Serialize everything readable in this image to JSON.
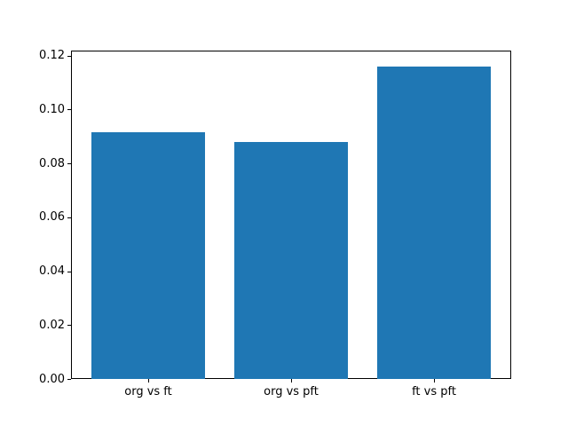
{
  "figure": {
    "background_color": "#ffffff",
    "spine_color": "#000000",
    "text_color": "#000000"
  },
  "chart_data": {
    "type": "bar",
    "categories": [
      "org vs ft",
      "org vs pft",
      "ft vs pft"
    ],
    "values": [
      0.0915,
      0.0878,
      0.116
    ],
    "title": "",
    "xlabel": "",
    "ylabel": "",
    "ylim": [
      0,
      0.1218
    ],
    "xlim": [
      -0.54,
      2.54
    ],
    "yticks": [
      0.0,
      0.02,
      0.04,
      0.06,
      0.08,
      0.1,
      0.12
    ],
    "ytick_labels": [
      "0.00",
      "0.02",
      "0.04",
      "0.06",
      "0.08",
      "0.10",
      "0.12"
    ],
    "bar_color": "#1f77b4",
    "bar_width_fraction": 0.8,
    "grid": false,
    "legend_position": null
  }
}
